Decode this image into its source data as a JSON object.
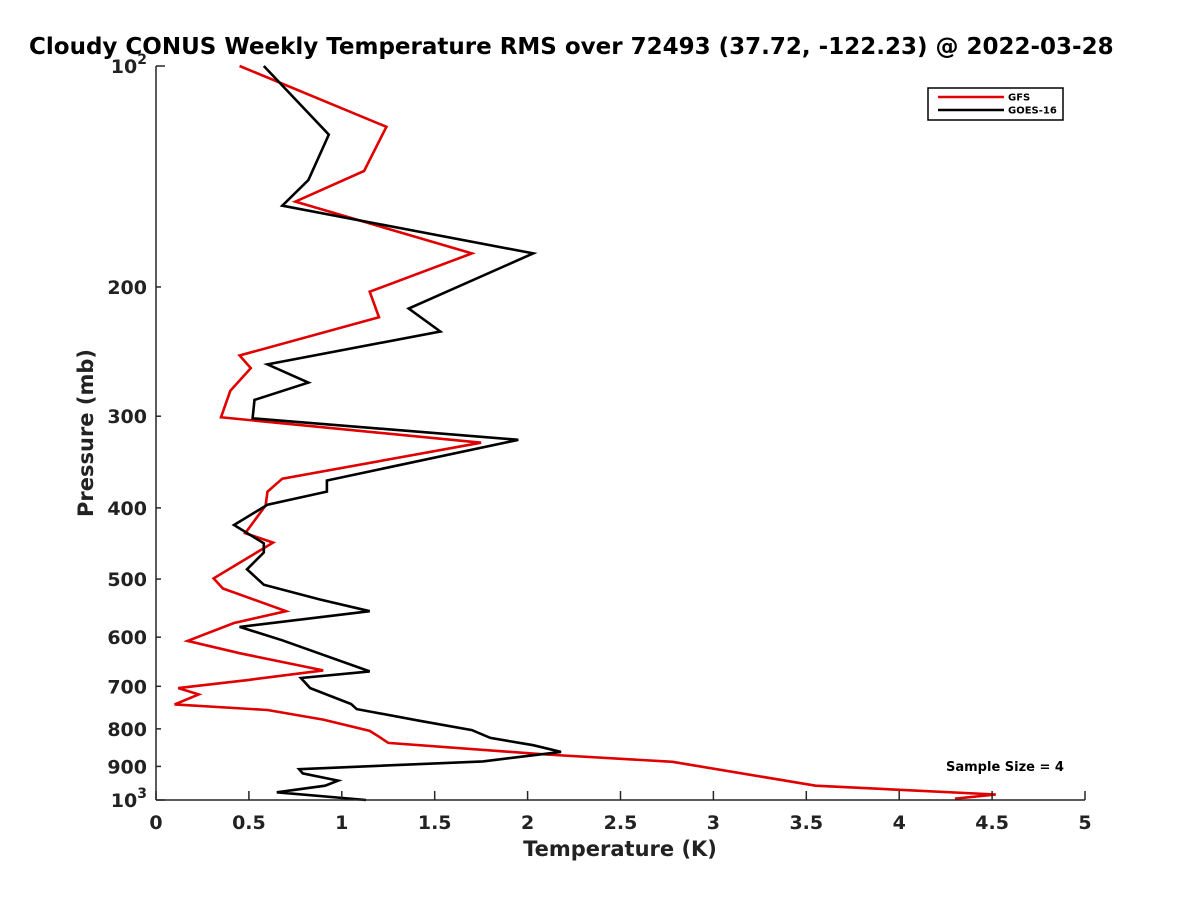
{
  "chart_data": {
    "type": "line",
    "title": "Cloudy CONUS Weekly Temperature RMS over 72493 (37.72, -122.23) @ 2022-03-28",
    "xlabel": "Temperature (K)",
    "ylabel": "Pressure (mb)",
    "xlim": [
      0,
      5
    ],
    "ylim": [
      100,
      1000
    ],
    "yscale": "log",
    "y_reversed": true,
    "grid": false,
    "legend": "top-right",
    "x_ticks": [
      {
        "value": 0,
        "label": "0"
      },
      {
        "value": 0.5,
        "label": "0.5"
      },
      {
        "value": 1,
        "label": "1"
      },
      {
        "value": 1.5,
        "label": "1.5"
      },
      {
        "value": 2,
        "label": "2"
      },
      {
        "value": 2.5,
        "label": "2.5"
      },
      {
        "value": 3,
        "label": "3"
      },
      {
        "value": 3.5,
        "label": "3.5"
      },
      {
        "value": 4,
        "label": "4"
      },
      {
        "value": 4.5,
        "label": "4.5"
      },
      {
        "value": 5,
        "label": "5"
      }
    ],
    "y_ticks": [
      {
        "value": 100,
        "base": "10",
        "exp": "2"
      },
      {
        "value": 200,
        "label": "200"
      },
      {
        "value": 300,
        "label": "300"
      },
      {
        "value": 400,
        "label": "400"
      },
      {
        "value": 500,
        "label": "500"
      },
      {
        "value": 600,
        "label": "600"
      },
      {
        "value": 700,
        "label": "700"
      },
      {
        "value": 800,
        "label": "800"
      },
      {
        "value": 900,
        "label": "900"
      },
      {
        "value": 1000,
        "base": "10",
        "exp": "3"
      }
    ],
    "series": [
      {
        "name": "GFS",
        "color": "#e00000",
        "points": [
          [
            0.45,
            100
          ],
          [
            1.24,
            121
          ],
          [
            1.12,
            139
          ],
          [
            0.75,
            153
          ],
          [
            1.7,
            180
          ],
          [
            1.15,
            203
          ],
          [
            1.2,
            220
          ],
          [
            0.45,
            248
          ],
          [
            0.51,
            258
          ],
          [
            0.4,
            277
          ],
          [
            0.35,
            301
          ],
          [
            1.75,
            326
          ],
          [
            0.68,
            365
          ],
          [
            0.6,
            380
          ],
          [
            0.59,
            397
          ],
          [
            0.48,
            433
          ],
          [
            0.63,
            446
          ],
          [
            0.45,
            475
          ],
          [
            0.31,
            499
          ],
          [
            0.36,
            515
          ],
          [
            0.7,
            553
          ],
          [
            0.42,
            574
          ],
          [
            0.17,
            607
          ],
          [
            0.45,
            631
          ],
          [
            0.9,
            666
          ],
          [
            0.5,
            686
          ],
          [
            0.12,
            704
          ],
          [
            0.23,
            718
          ],
          [
            0.1,
            741
          ],
          [
            0.6,
            754
          ],
          [
            0.9,
            777
          ],
          [
            1.15,
            805
          ],
          [
            1.2,
            820
          ],
          [
            1.25,
            836
          ],
          [
            2.1,
            867
          ],
          [
            2.78,
            887
          ],
          [
            3.55,
            956
          ],
          [
            4.52,
            983
          ],
          [
            4.3,
            996
          ]
        ]
      },
      {
        "name": "GOES-16",
        "color": "#000000",
        "points": [
          [
            0.58,
            100
          ],
          [
            0.93,
            124
          ],
          [
            0.82,
            143
          ],
          [
            0.68,
            155
          ],
          [
            2.03,
            180
          ],
          [
            1.36,
            214
          ],
          [
            1.53,
            230
          ],
          [
            0.6,
            255
          ],
          [
            0.82,
            270
          ],
          [
            0.53,
            285
          ],
          [
            0.52,
            302
          ],
          [
            1.95,
            323
          ],
          [
            0.92,
            367
          ],
          [
            0.92,
            380
          ],
          [
            0.6,
            396
          ],
          [
            0.42,
            422
          ],
          [
            0.58,
            447
          ],
          [
            0.58,
            460
          ],
          [
            0.49,
            485
          ],
          [
            0.58,
            509
          ],
          [
            0.88,
            533
          ],
          [
            1.15,
            553
          ],
          [
            0.45,
            581
          ],
          [
            0.68,
            606
          ],
          [
            1.15,
            668
          ],
          [
            0.78,
            682
          ],
          [
            0.83,
            704
          ],
          [
            1.05,
            740
          ],
          [
            1.08,
            752
          ],
          [
            1.42,
            780
          ],
          [
            1.7,
            803
          ],
          [
            1.8,
            823
          ],
          [
            2.03,
            842
          ],
          [
            2.18,
            860
          ],
          [
            1.76,
            886
          ],
          [
            0.77,
            908
          ],
          [
            0.79,
            920
          ],
          [
            0.98,
            941
          ],
          [
            0.91,
            956
          ],
          [
            0.65,
            976
          ],
          [
            1.13,
            1000
          ]
        ]
      }
    ],
    "annotation": "Sample Size = 4"
  }
}
